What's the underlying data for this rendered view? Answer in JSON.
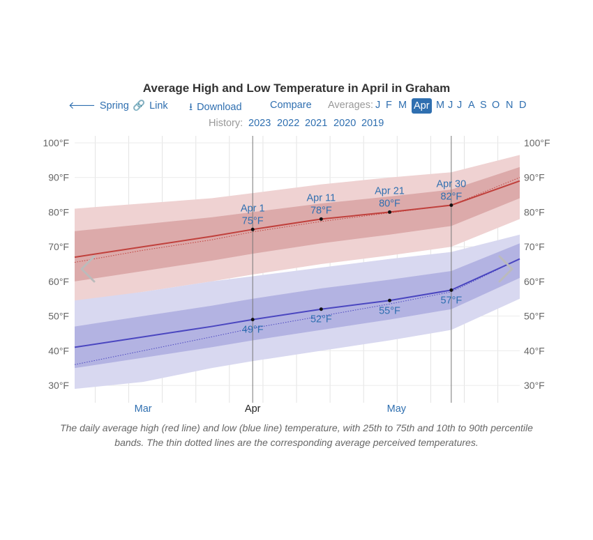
{
  "title": "Average High and Low Temperature in April in Graham",
  "nav": {
    "spring": "Spring",
    "link": "Link",
    "download": "Download",
    "compare": "Compare",
    "averages_label": "Averages:",
    "months": [
      "J",
      "F",
      "M",
      "Apr",
      "M",
      "J",
      "J",
      "A",
      "S",
      "O",
      "N",
      "D"
    ],
    "selected_month": "Apr",
    "history_label": "History:",
    "years": [
      "2023",
      "2022",
      "2021",
      "2020",
      "2019"
    ]
  },
  "caption": "The daily average high (red line) and low (blue line) temperature, with 25th to 75th and 10th to 90th percentile bands. The thin dotted lines are the corresponding average perceived temperatures.",
  "colors": {
    "high": "#c0403c",
    "low": "#4a46c0",
    "high_band_inner": "#dcaaaa",
    "high_band_outer": "#efd2d2",
    "low_band_inner": "#b3b3e2",
    "low_band_outer": "#d8d8f0",
    "accent": "#2f6fb0"
  },
  "chart_data": {
    "type": "area",
    "ylim": [
      25,
      102
    ],
    "xlim": [
      -25,
      40
    ],
    "y_ticks": [
      30,
      40,
      50,
      60,
      70,
      80,
      90,
      100
    ],
    "y_tick_labels": [
      "30°F",
      "40°F",
      "50°F",
      "60°F",
      "70°F",
      "80°F",
      "90°F",
      "100°F"
    ],
    "x_month_labels": [
      {
        "day": -15,
        "label": "Mar"
      },
      {
        "day": 1,
        "label": "Apr"
      },
      {
        "day": 22,
        "label": "May"
      }
    ],
    "grid": true,
    "x_days": [
      -25,
      -15,
      -5,
      1,
      11,
      21,
      30,
      40
    ],
    "series": [
      {
        "name": "high",
        "values": [
          67,
          70,
          73,
          75,
          78,
          80,
          82,
          89
        ]
      },
      {
        "name": "high_perceived",
        "values": [
          65.5,
          69,
          72,
          74.3,
          77.3,
          79.8,
          82,
          90
        ]
      },
      {
        "name": "high_p25",
        "values": [
          60,
          63,
          66,
          68,
          71,
          73.5,
          76,
          84
        ]
      },
      {
        "name": "high_p75",
        "values": [
          74.5,
          76.5,
          78.5,
          80,
          82.5,
          84.5,
          86.5,
          93
        ]
      },
      {
        "name": "high_p10",
        "values": [
          54,
          57,
          60,
          62,
          65,
          67.5,
          70,
          78
        ]
      },
      {
        "name": "high_p90",
        "values": [
          81,
          82.5,
          84,
          85.5,
          88,
          90,
          91.5,
          96.5
        ]
      },
      {
        "name": "low",
        "values": [
          41,
          44,
          47,
          49,
          52,
          54.5,
          57.5,
          66.5
        ]
      },
      {
        "name": "low_perceived",
        "values": [
          36,
          40,
          44,
          46.5,
          50,
          53.5,
          57,
          66.5
        ]
      },
      {
        "name": "low_p25",
        "values": [
          35,
          38,
          41,
          43,
          46,
          49,
          52,
          61
        ]
      },
      {
        "name": "low_p75",
        "values": [
          47,
          50,
          53,
          55,
          58,
          60.5,
          63,
          71
        ]
      },
      {
        "name": "low_p10",
        "values": [
          29,
          31,
          35,
          37,
          40,
          43,
          46,
          55
        ]
      },
      {
        "name": "low_p90",
        "values": [
          54.5,
          57,
          60,
          61.5,
          64,
          66.5,
          68.5,
          73.5
        ]
      }
    ],
    "annotations": [
      {
        "day": 1,
        "value": 75,
        "date": "Apr 1",
        "temp": "75°F",
        "series": "high"
      },
      {
        "day": 11,
        "value": 78,
        "date": "Apr 11",
        "temp": "78°F",
        "series": "high"
      },
      {
        "day": 21,
        "value": 80,
        "date": "Apr 21",
        "temp": "80°F",
        "series": "high"
      },
      {
        "day": 30,
        "value": 82,
        "date": "Apr 30",
        "temp": "82°F",
        "series": "high"
      },
      {
        "day": 1,
        "value": 49,
        "temp": "49°F",
        "series": "low"
      },
      {
        "day": 11,
        "value": 52,
        "temp": "52°F",
        "series": "low"
      },
      {
        "day": 21,
        "value": 54.5,
        "temp": "55°F",
        "series": "low"
      },
      {
        "day": 30,
        "value": 57.5,
        "temp": "57°F",
        "series": "low"
      }
    ]
  }
}
